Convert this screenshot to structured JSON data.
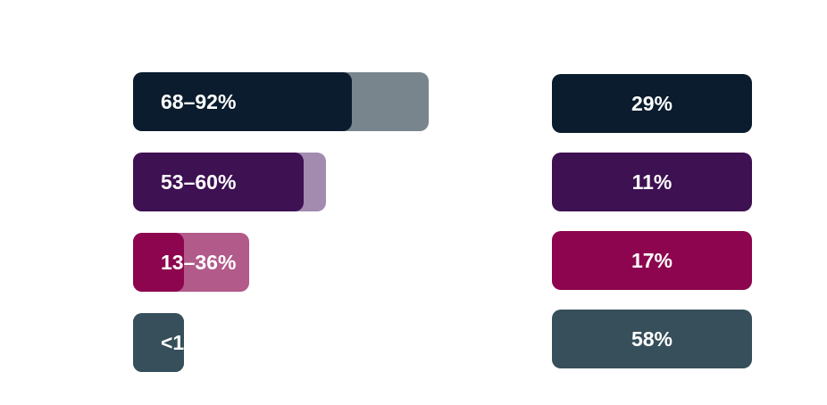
{
  "chart_data": {
    "type": "bar",
    "title": "",
    "xlabel": "",
    "ylabel": "",
    "xlim": [
      0,
      100
    ],
    "grid": false,
    "legend": "none",
    "rows": [
      {
        "range_label": "68–92%",
        "range": [
          68,
          92
        ],
        "share_label": "29%",
        "share": 29,
        "color": "#0a1c2e",
        "range_color": "#78858d"
      },
      {
        "range_label": "53–60%",
        "range": [
          53,
          60
        ],
        "share_label": "11%",
        "share": 11,
        "color": "#3e1152",
        "range_color": "#a28baf"
      },
      {
        "range_label": "13–36%",
        "range": [
          13,
          36
        ],
        "share_label": "17%",
        "share": 17,
        "color": "#8c054e",
        "range_color": "#b25a8a"
      },
      {
        "range_label": "<1",
        "range": [
          0,
          1
        ],
        "share_label": "58%",
        "share": 58,
        "color": "#364f5a",
        "range_color": "#364f5a"
      }
    ]
  }
}
